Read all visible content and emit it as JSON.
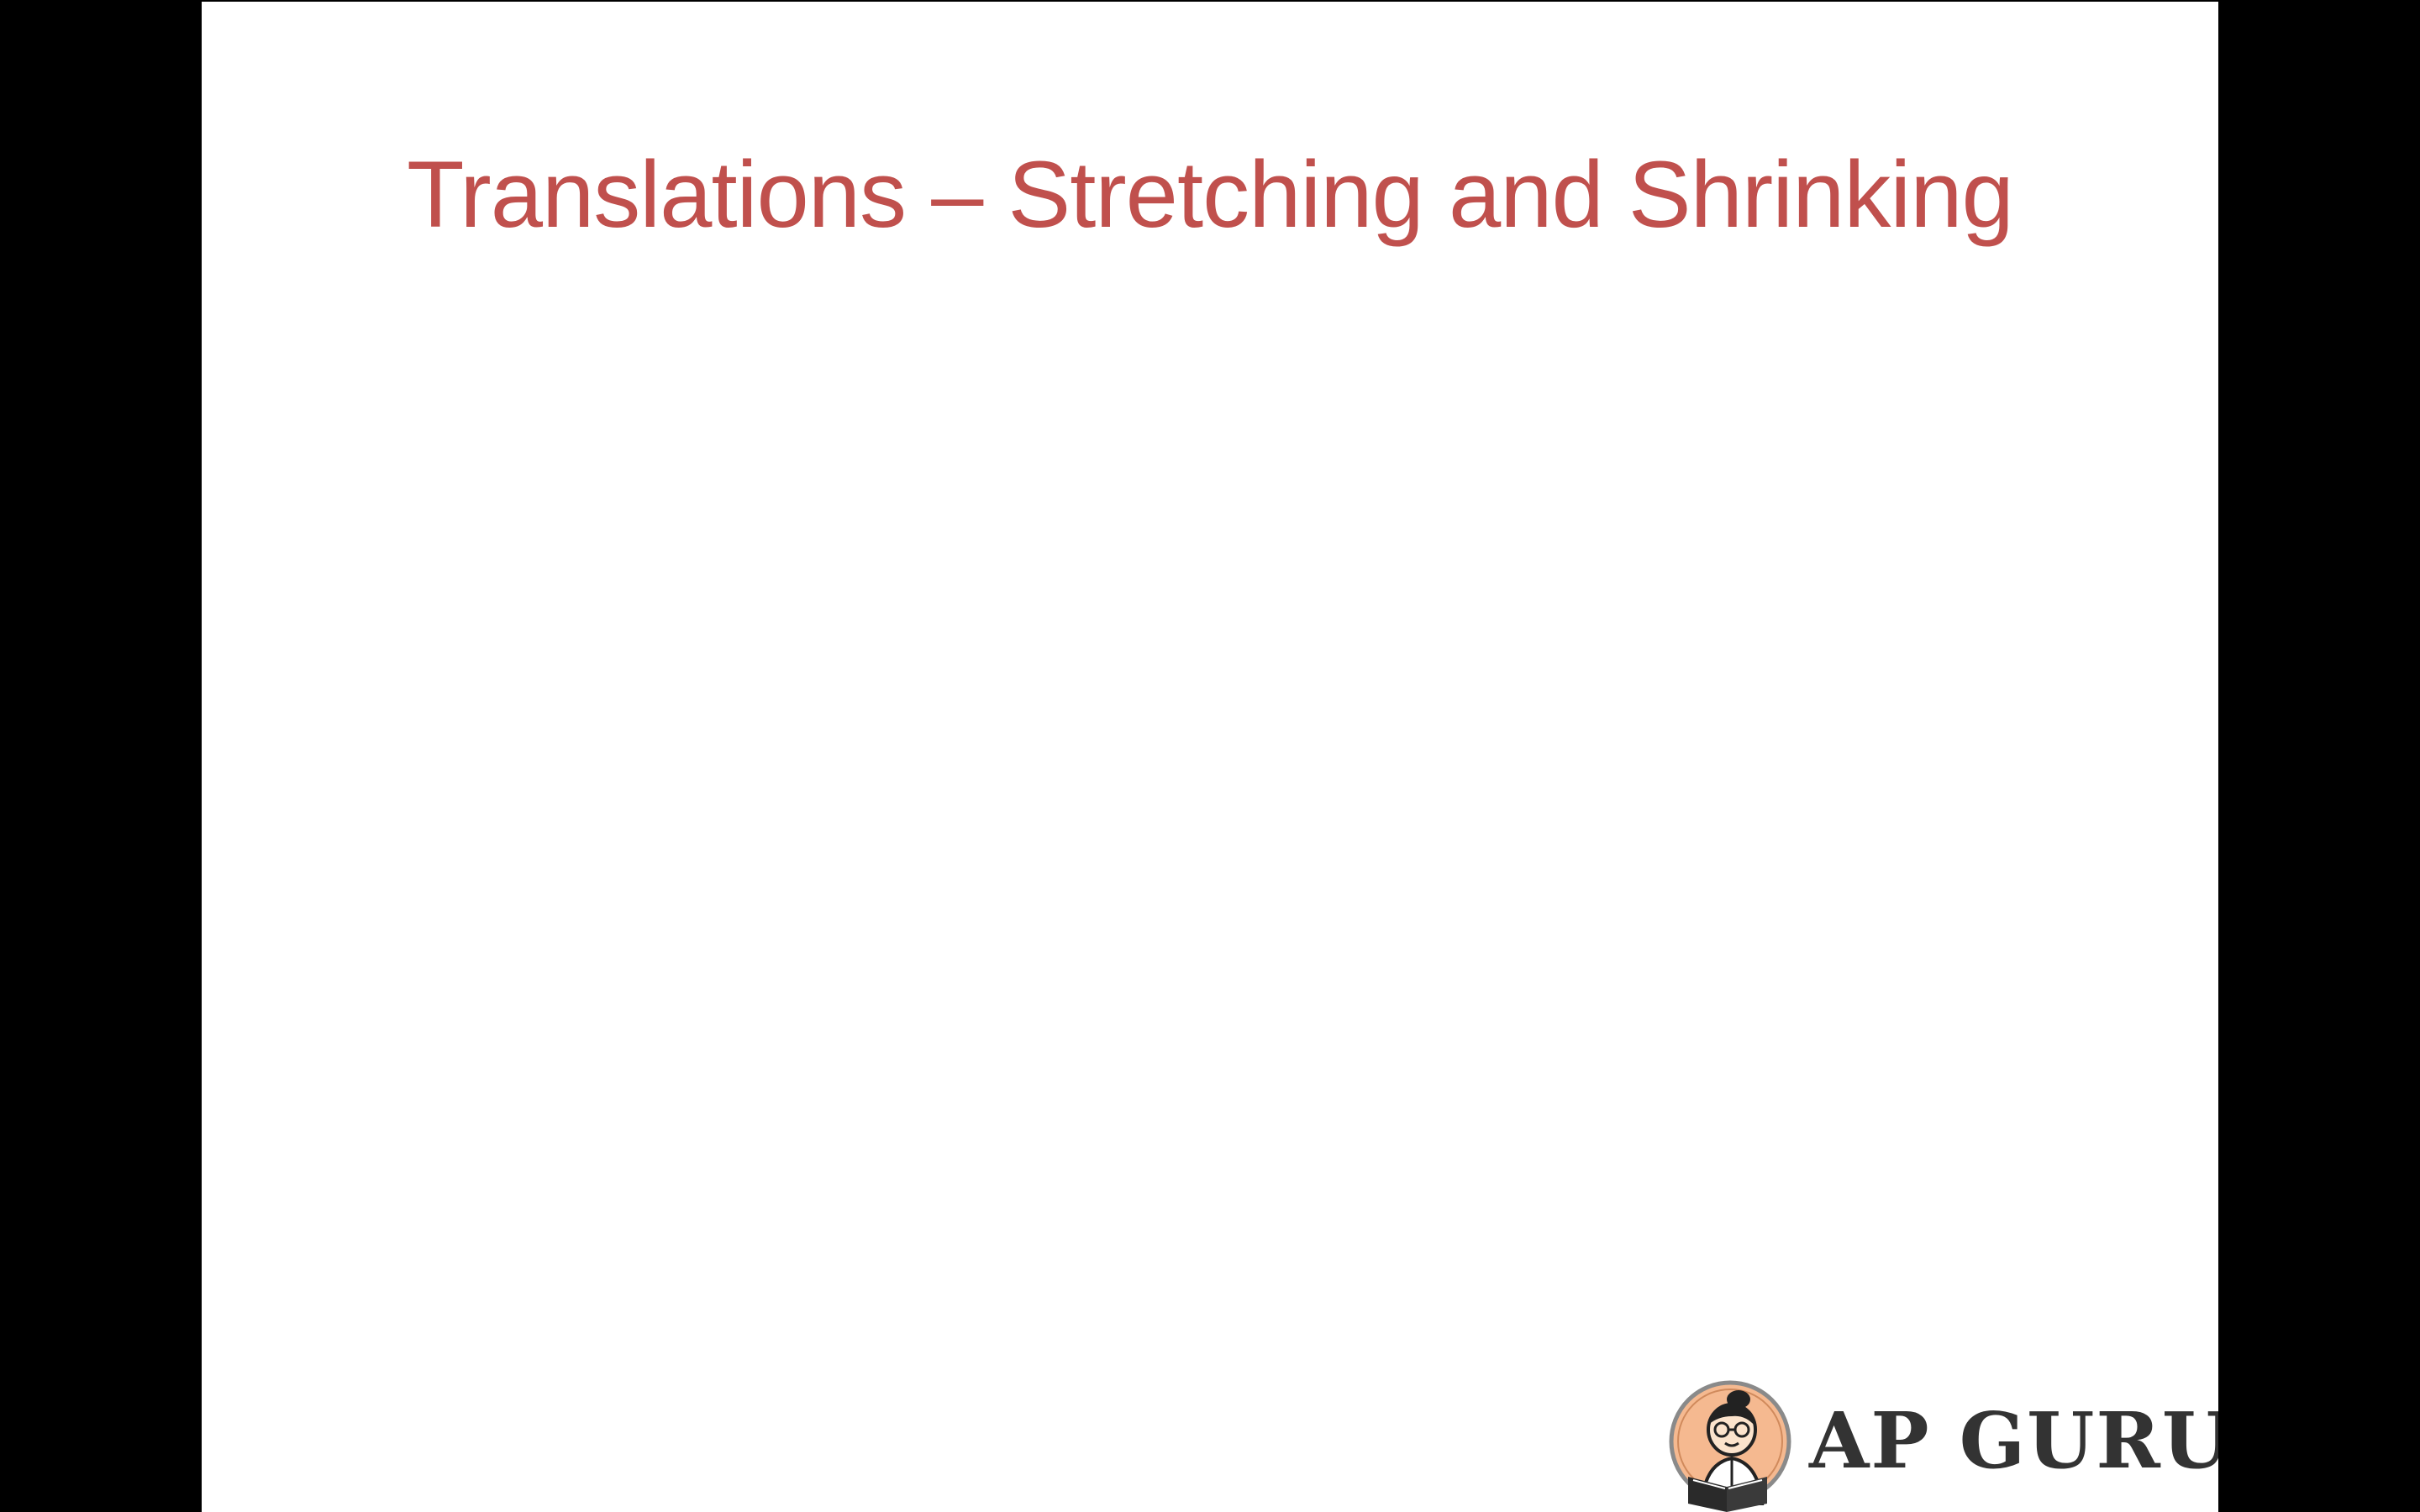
{
  "slide": {
    "title": "Translations – Stretching and Shrinking",
    "title_color": "#c0504d",
    "background_color": "#ffffff",
    "letterbox_color": "#000000"
  },
  "logo": {
    "text": "AP GURU",
    "text_color": "#333333",
    "icon": "reading-boy-icon",
    "badge_color": "#f5b990"
  }
}
